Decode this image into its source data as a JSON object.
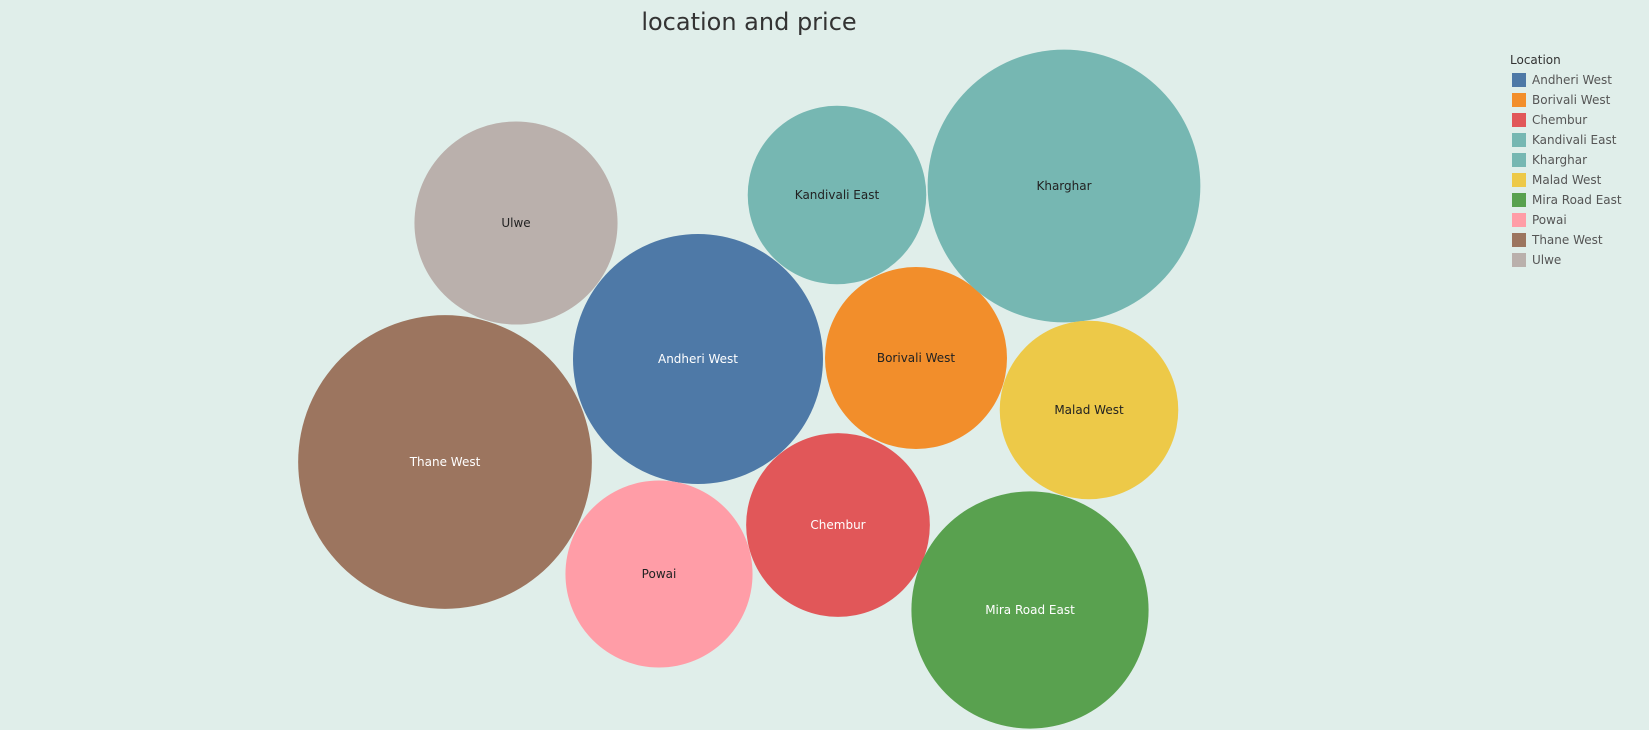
{
  "chart_data": {
    "type": "bubble",
    "title": "location and price",
    "legend": {
      "title": "Location",
      "placement": "top-right",
      "entries": [
        {
          "label": "Andheri West",
          "color": "#4e79a7"
        },
        {
          "label": "Borivali West",
          "color": "#f28e2b"
        },
        {
          "label": "Chembur",
          "color": "#e15759"
        },
        {
          "label": "Kandivali East",
          "color": "#76b7b2"
        },
        {
          "label": "Kharghar",
          "color": "#76b7b2"
        },
        {
          "label": "Malad West",
          "color": "#edc948"
        },
        {
          "label": "Mira Road East",
          "color": "#59a14f"
        },
        {
          "label": "Powai",
          "color": "#ff9da7"
        },
        {
          "label": "Thane West",
          "color": "#9c755f"
        },
        {
          "label": "Ulwe",
          "color": "#bab0ac"
        }
      ]
    },
    "series": [
      {
        "label": "Andheri West",
        "value": 1.0,
        "color": "#4e79a7",
        "text_color": "#ffffff"
      },
      {
        "label": "Borivali West",
        "value": 0.53,
        "color": "#f28e2b",
        "text_color": "#222222"
      },
      {
        "label": "Chembur",
        "value": 0.54,
        "color": "#e15759",
        "text_color": "#ffffff"
      },
      {
        "label": "Kandivali East",
        "value": 0.51,
        "color": "#76b7b2",
        "text_color": "#222222"
      },
      {
        "label": "Kharghar",
        "value": 1.19,
        "color": "#76b7b2",
        "text_color": "#222222"
      },
      {
        "label": "Malad West",
        "value": 0.51,
        "color": "#edc948",
        "text_color": "#222222"
      },
      {
        "label": "Mira Road East",
        "value": 0.9,
        "color": "#59a14f",
        "text_color": "#ffffff"
      },
      {
        "label": "Powai",
        "value": 0.56,
        "color": "#ff9da7",
        "text_color": "#222222"
      },
      {
        "label": "Thane West",
        "value": 1.38,
        "color": "#9c755f",
        "text_color": "#ffffff"
      },
      {
        "label": "Ulwe",
        "value": 0.66,
        "color": "#bab0ac",
        "text_color": "#222222"
      }
    ]
  }
}
